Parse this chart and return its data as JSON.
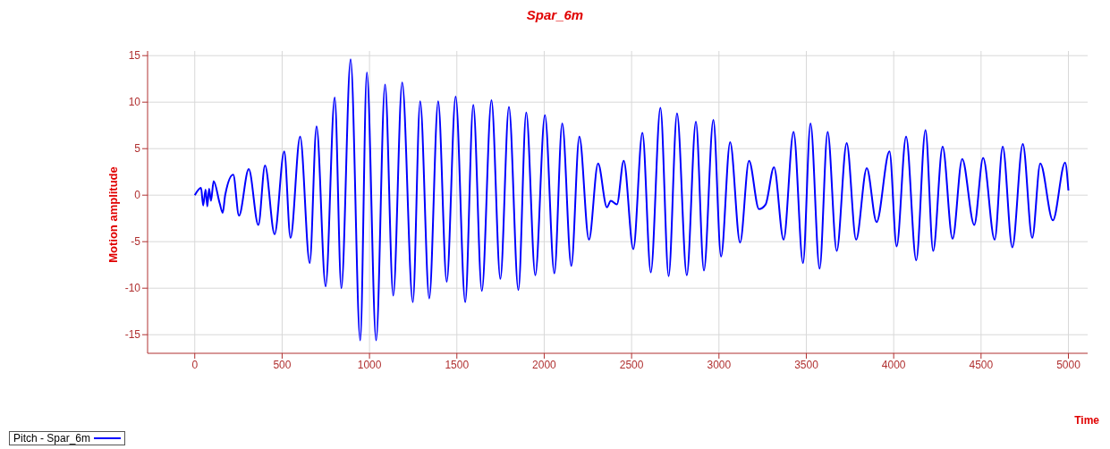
{
  "chart_data": {
    "type": "line",
    "title": "Spar_6m",
    "xlabel": "Time",
    "ylabel": "Motion amplitude",
    "x": [
      0,
      36,
      48,
      62,
      72,
      82,
      93,
      108,
      143,
      160,
      174,
      220,
      253,
      309,
      364,
      402,
      457,
      512,
      548,
      603,
      658,
      697,
      749,
      801,
      839,
      892,
      947,
      985,
      1038,
      1089,
      1136,
      1187,
      1248,
      1290,
      1342,
      1393,
      1442,
      1493,
      1548,
      1594,
      1643,
      1698,
      1749,
      1798,
      1852,
      1897,
      1949,
      2004,
      2058,
      2103,
      2155,
      2201,
      2256,
      2308,
      2359,
      2381,
      2416,
      2455,
      2510,
      2562,
      2610,
      2665,
      2712,
      2760,
      2816,
      2868,
      2914,
      2968,
      3012,
      3064,
      3121,
      3172,
      3229,
      3267,
      3315,
      3370,
      3427,
      3481,
      3524,
      3576,
      3622,
      3674,
      3731,
      3785,
      3846,
      3902,
      3976,
      4017,
      4071,
      4129,
      4182,
      4226,
      4280,
      4337,
      4392,
      4461,
      4512,
      4578,
      4624,
      4679,
      4739,
      4793,
      4839,
      4911,
      4981,
      5000
    ],
    "series": [
      {
        "name": "Pitch - Spar_6m",
        "color": "#0000ff",
        "values": [
          0,
          0.8,
          -1.1,
          0.6,
          -1.2,
          0.7,
          -0.6,
          1.5,
          -0.9,
          -1.9,
          0,
          2.2,
          -2.2,
          2.8,
          -3.2,
          3.2,
          -4.2,
          4.7,
          -4.6,
          6.3,
          -7.3,
          7.4,
          -9.8,
          10.5,
          -10,
          14.6,
          -15.6,
          13.2,
          -15.6,
          11.9,
          -10.8,
          12.1,
          -11.5,
          10.1,
          -11.1,
          10.1,
          -9.3,
          10.6,
          -11.5,
          9.7,
          -10.3,
          10.2,
          -9,
          9.5,
          -10.2,
          8.9,
          -8.6,
          8.6,
          -8.4,
          7.7,
          -7.6,
          6.3,
          -4.8,
          3.4,
          -1.3,
          -0.6,
          -1,
          3.7,
          -5.8,
          6.7,
          -8.3,
          9.4,
          -8.7,
          8.8,
          -8.6,
          7.9,
          -8.1,
          8.1,
          -6.6,
          5.7,
          -5.1,
          3.7,
          -1.5,
          -1,
          3,
          -4.8,
          6.8,
          -7.3,
          7.7,
          -7.9,
          6.8,
          -6,
          5.6,
          -4.8,
          2.9,
          -2.9,
          4.7,
          -5.5,
          6.3,
          -7,
          7,
          -6,
          5.2,
          -4.7,
          3.9,
          -3.2,
          4,
          -4.8,
          5.2,
          -5.6,
          5.5,
          -4.6,
          3.4,
          -2.7,
          3.5,
          0.5
        ]
      }
    ],
    "xlim": [
      -270,
      5110
    ],
    "xticks": [
      0,
      500,
      1000,
      1500,
      2000,
      2500,
      3000,
      3500,
      4000,
      4500,
      5000
    ],
    "ylim": [
      -17,
      15.5
    ],
    "yticks": [
      -15,
      -10,
      -5,
      0,
      5,
      10,
      15
    ],
    "grid": true,
    "legend": "bottom left",
    "marker": "none",
    "line_style": "solid"
  }
}
